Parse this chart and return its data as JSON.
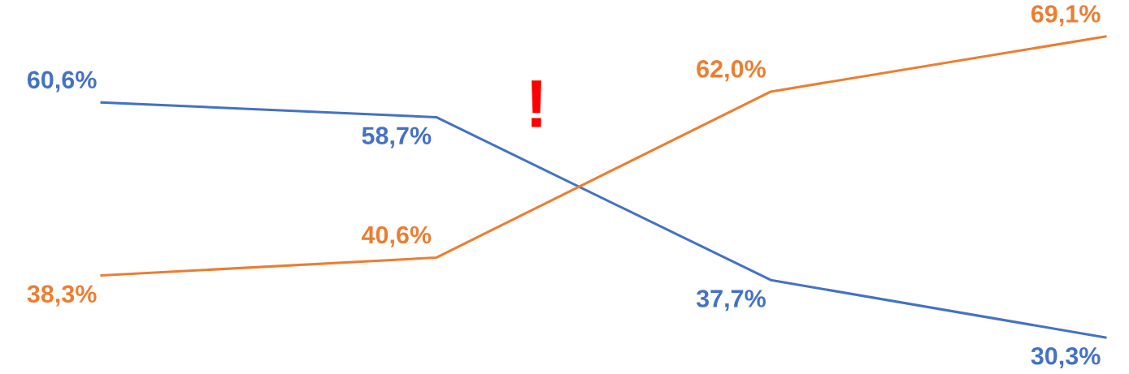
{
  "chart_data": {
    "type": "line",
    "categories": [
      null,
      null,
      null,
      null
    ],
    "series": [
      {
        "color": "#4472c4",
        "values": [
          60.6,
          58.7,
          37.7,
          30.3
        ],
        "value_labels": [
          "60,6%",
          "58,7%",
          "37,7%",
          "30,3%"
        ]
      },
      {
        "color": "#ed7d31",
        "values": [
          38.3,
          40.6,
          62.0,
          69.1
        ],
        "value_labels": [
          "38,3%",
          "40,6%",
          "62,0%",
          "69,1%"
        ]
      }
    ],
    "tick_labels": false,
    "grid": false,
    "legend": false,
    "marker": "none",
    "line_style": "solid",
    "annotations": [
      "!"
    ]
  }
}
